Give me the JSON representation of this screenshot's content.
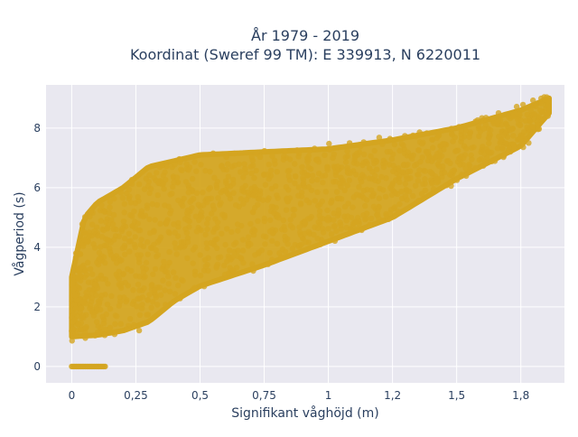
{
  "chart_data": {
    "type": "scatter",
    "title_line1": "År 1979 - 2019",
    "title_line2": "Koordinat (Sweref 99 TM): E 339913, N 6220011",
    "xlabel": "Signifikant våghöjd (m)",
    "ylabel": "Vågperiod (s)",
    "xlim": [
      -0.1,
      1.92
    ],
    "ylim": [
      -0.55,
      9.45
    ],
    "x_ticks": [
      0,
      0.25,
      0.5,
      0.75,
      1,
      1.25,
      1.5,
      1.75
    ],
    "x_tick_labels": [
      "0",
      "0,25",
      "0,5",
      "0,75",
      "1",
      "1,2",
      "1,5",
      "1,8"
    ],
    "y_ticks": [
      0,
      2,
      4,
      6,
      8
    ],
    "y_tick_labels": [
      "0",
      "2",
      "4",
      "6",
      "8"
    ],
    "grid": true,
    "marker_color": "#D4A520",
    "background_color": "#E9E8F0",
    "point_density_outline": {
      "lower_edge": [
        [
          0.0,
          1.0
        ],
        [
          0.1,
          1.05
        ],
        [
          0.2,
          1.2
        ],
        [
          0.3,
          1.5
        ],
        [
          0.4,
          2.2
        ],
        [
          0.5,
          2.7
        ],
        [
          0.75,
          3.4
        ],
        [
          1.0,
          4.2
        ],
        [
          1.25,
          5.0
        ],
        [
          1.5,
          6.3
        ],
        [
          1.75,
          7.4
        ],
        [
          1.86,
          8.5
        ]
      ],
      "upper_edge": [
        [
          0.0,
          3.0
        ],
        [
          0.05,
          5.0
        ],
        [
          0.1,
          5.5
        ],
        [
          0.2,
          6.0
        ],
        [
          0.3,
          6.7
        ],
        [
          0.5,
          7.1
        ],
        [
          0.75,
          7.2
        ],
        [
          1.0,
          7.3
        ],
        [
          1.25,
          7.6
        ],
        [
          1.5,
          8.0
        ],
        [
          1.75,
          8.6
        ],
        [
          1.86,
          9.0
        ]
      ],
      "zero_period_segment": {
        "x_range": [
          0.0,
          0.13
        ],
        "y": 0
      }
    }
  }
}
